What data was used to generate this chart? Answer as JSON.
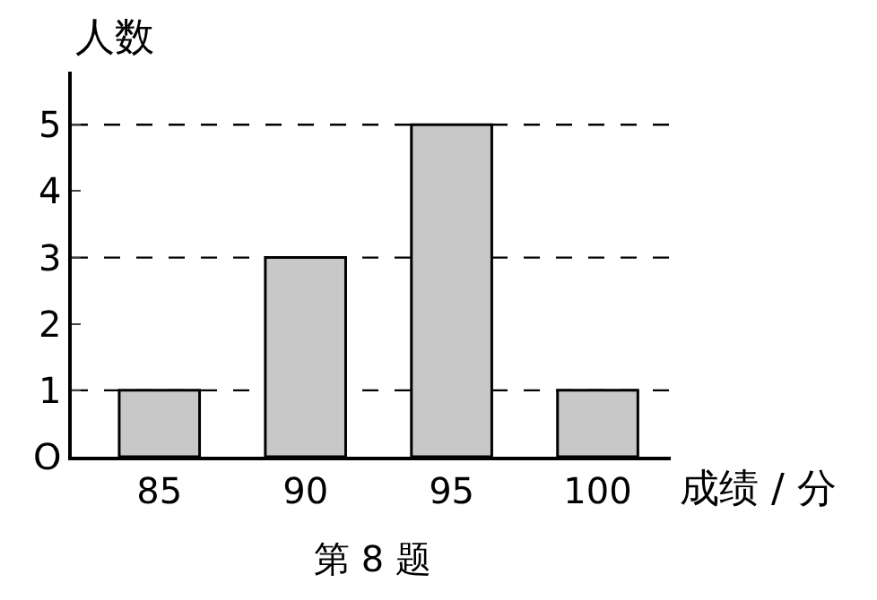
{
  "chart_data": {
    "type": "bar",
    "xlabel": "成绩 / 分",
    "ylabel": "人数",
    "categories": [
      "85",
      "90",
      "95",
      "100"
    ],
    "values": [
      1,
      3,
      5,
      1
    ],
    "color": "#c8c8c8",
    "ylim": [
      0,
      5.8
    ],
    "yticks": [
      {
        "value": 0,
        "label": "O"
      },
      1,
      2,
      3,
      4,
      5
    ],
    "ref_lines": [
      {
        "axis": "y",
        "value": 1,
        "line_style": "dashed",
        "color": "#000000"
      },
      {
        "axis": "y",
        "value": 3,
        "line_style": "dashed",
        "color": "#000000"
      },
      {
        "axis": "y",
        "value": 5,
        "line_style": "dashed",
        "color": "#000000"
      }
    ],
    "annotations": [
      "第 8 题"
    ]
  }
}
